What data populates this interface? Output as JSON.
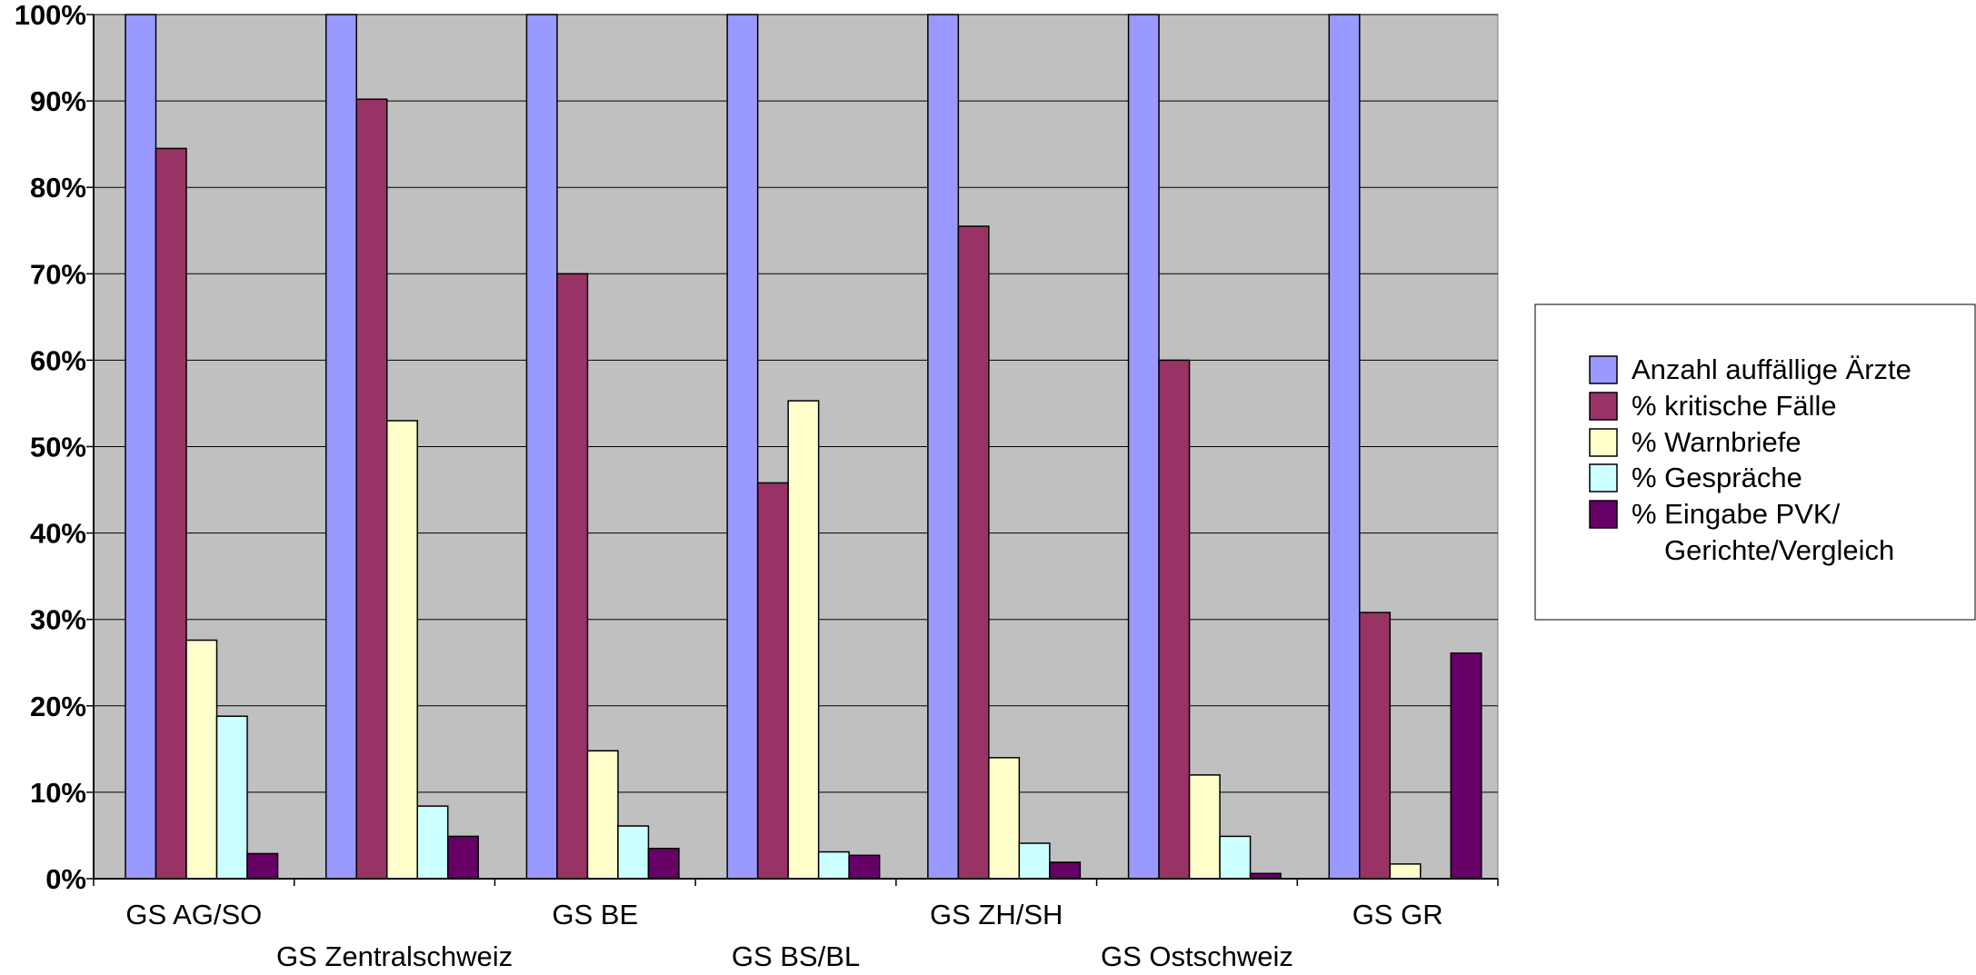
{
  "chart_data": {
    "type": "bar",
    "title": "",
    "xlabel": "",
    "ylabel": "",
    "ylim": [
      0,
      100
    ],
    "ytick_values": [
      0,
      10,
      20,
      30,
      40,
      50,
      60,
      70,
      80,
      90,
      100
    ],
    "ytick_labels": [
      "0%",
      "10%",
      "20%",
      "30%",
      "40%",
      "50%",
      "60%",
      "70%",
      "80%",
      "90%",
      "100%"
    ],
    "grid": "horizontal",
    "plot_background": "#c0c0c0",
    "legend_position": "right",
    "categories": [
      "GS AG/SO",
      "GS Zentralschweiz",
      "GS BE",
      "GS BS/BL",
      "GS ZH/SH",
      "GS Ostschweiz",
      "GS GR"
    ],
    "series": [
      {
        "name": "Anzahl auffällige Ärzte",
        "legend_lines": [
          "Anzahl auffällige Ärzte"
        ],
        "color": "#9999ff",
        "values": [
          100,
          100,
          100,
          100,
          100,
          100,
          100
        ]
      },
      {
        "name": "% kritische Fälle",
        "legend_lines": [
          "% kritische Fälle"
        ],
        "color": "#993366",
        "values": [
          84.5,
          90.2,
          70,
          45.8,
          75.5,
          60,
          30.8
        ]
      },
      {
        "name": "% Warnbriefe",
        "legend_lines": [
          "% Warnbriefe"
        ],
        "color": "#ffffcc",
        "values": [
          27.6,
          53,
          14.8,
          55.3,
          14,
          12,
          1.7
        ]
      },
      {
        "name": "% Gespräche",
        "legend_lines": [
          "% Gespräche"
        ],
        "color": "#ccffff",
        "values": [
          18.8,
          8.4,
          6.1,
          3.1,
          4.1,
          4.9,
          0
        ]
      },
      {
        "name": "% Eingabe PVK/ Gerichte/Vergleich",
        "legend_lines": [
          "% Eingabe PVK/",
          "Gerichte/Vergleich"
        ],
        "color": "#660066",
        "values": [
          2.9,
          4.9,
          3.5,
          2.7,
          1.9,
          0.6,
          26.1
        ]
      }
    ]
  }
}
